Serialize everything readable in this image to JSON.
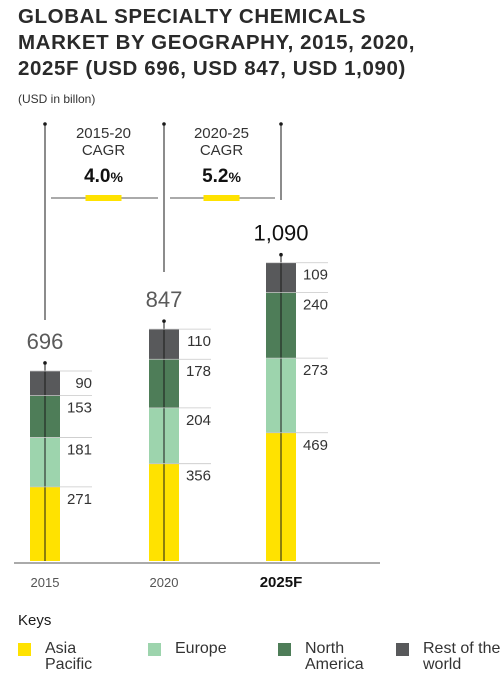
{
  "title_lines": [
    "GLOBAL SPECIALTY CHEMICALS",
    "MARKET BY GEOGRAPHY, 2015, 2020,",
    "2025F (USD 696, USD 847, USD 1,090)"
  ],
  "unit_note": "(USD in billon)",
  "keys_title": "Keys",
  "chart_data": {
    "type": "bar",
    "stacked": true,
    "title": "GLOBAL SPECIALTY CHEMICALS MARKET BY GEOGRAPHY, 2015, 2020, 2025F (USD 696, USD 847, USD 1,090)",
    "categories": [
      "2015",
      "2020",
      "2025F"
    ],
    "totals": [
      "696",
      "847",
      "1,090"
    ],
    "series": [
      {
        "name": "Asia Pacific",
        "color": "#ffe200",
        "values": [
          271,
          356,
          469
        ]
      },
      {
        "name": "Europe",
        "color": "#9dd4ad",
        "values": [
          181,
          204,
          273
        ]
      },
      {
        "name": "North America",
        "color": "#4e7d58",
        "values": [
          153,
          178,
          240
        ]
      },
      {
        "name": "Rest of the world",
        "color": "#58595b",
        "values": [
          90,
          110,
          109
        ]
      }
    ],
    "cagr": [
      {
        "period": "2015-20",
        "label": "CAGR",
        "value": "4.0",
        "unit": "%"
      },
      {
        "period": "2020-25",
        "label": "CAGR",
        "value": "5.2",
        "unit": "%"
      }
    ],
    "legend_position": "bottom",
    "grid": false
  }
}
